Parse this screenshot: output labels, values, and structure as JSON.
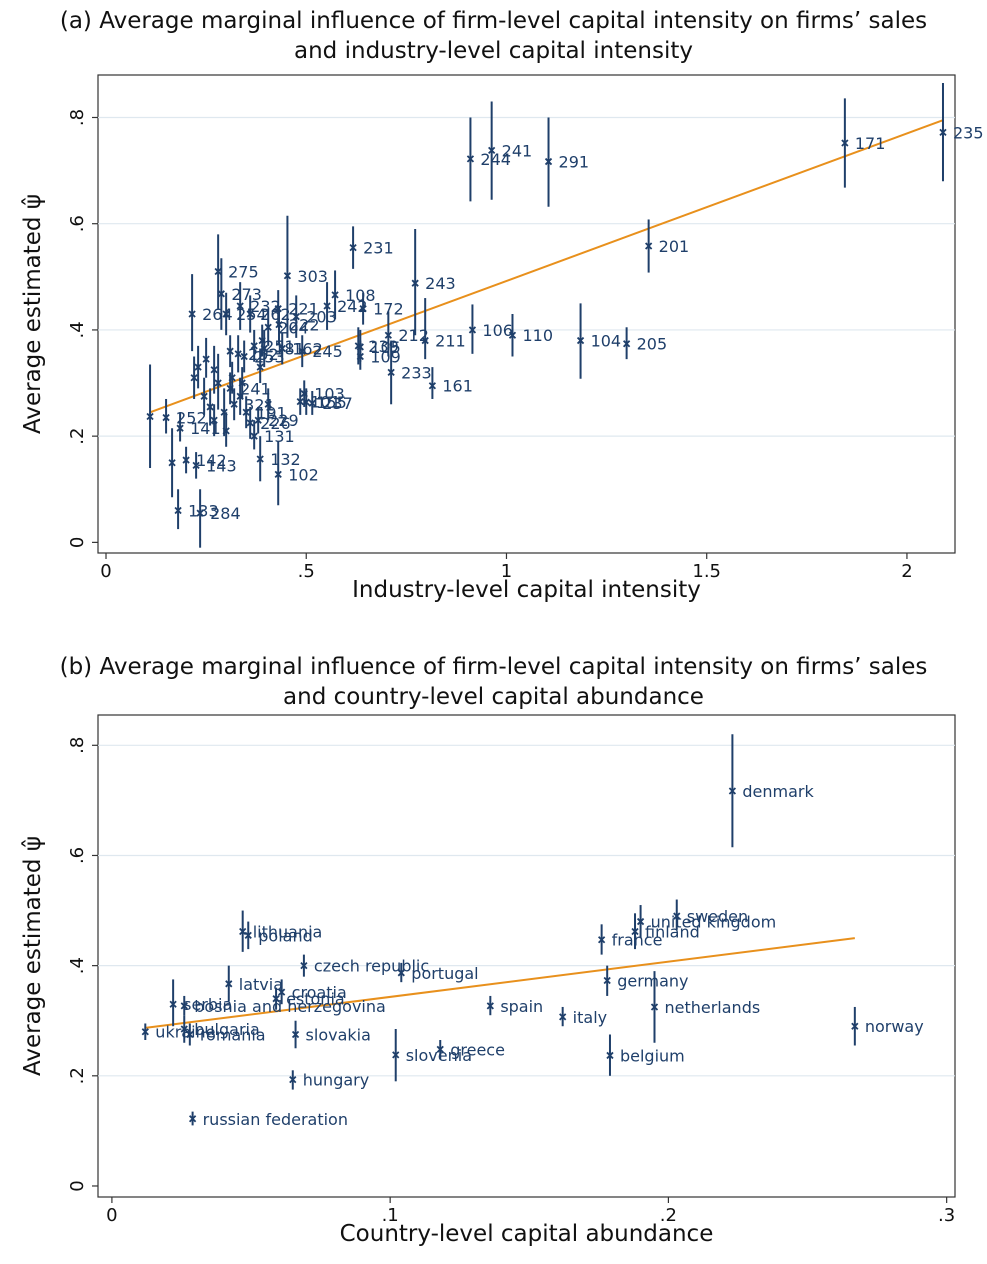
{
  "panels": [
    {
      "title_line1": "(a) Average marginal influence of firm-level capital intensity on firms’ sales",
      "title_line2": "and industry-level capital intensity",
      "xlabel": "Industry-level capital intensity",
      "ylabel": "Average estimated ψ̂"
    },
    {
      "title_line1": "(b) Average marginal influence of firm-level capital intensity on firms’ sales",
      "title_line2": "and country-level capital abundance",
      "xlabel": "Country-level capital abundance",
      "ylabel": "Average estimated ψ̂"
    }
  ],
  "chart_data": [
    {
      "type": "scatter",
      "title": "(a) Average marginal influence of firm-level capital intensity on firms’ sales and industry-level capital intensity",
      "xlabel": "Industry-level capital intensity",
      "ylabel": "Average estimated ψ̂",
      "xlim": [
        -0.02,
        2.12
      ],
      "ylim": [
        -0.02,
        0.88
      ],
      "xticks": [
        0,
        0.5,
        1,
        1.5,
        2
      ],
      "xtick_labels": [
        "0",
        ".5",
        "1",
        "1.5",
        "2"
      ],
      "yticks": [
        0,
        0.2,
        0.4,
        0.6,
        0.8
      ],
      "ytick_labels": [
        "0",
        ".2",
        ".4",
        ".6",
        ".8"
      ],
      "grid": "horizontal",
      "colors": {
        "points": "#1f3f6a",
        "fit": "#e8901c",
        "grid": "#dfe8ef"
      },
      "fit_line": {
        "x": [
          0.11,
          2.09
        ],
        "y": [
          0.245,
          0.795
        ]
      },
      "points": [
        {
          "label": "235",
          "x": 2.09,
          "y": 0.772,
          "lo": 0.68,
          "hi": 0.865
        },
        {
          "label": "171",
          "x": 1.845,
          "y": 0.752,
          "lo": 0.668,
          "hi": 0.836
        },
        {
          "label": "201",
          "x": 1.355,
          "y": 0.558,
          "lo": 0.508,
          "hi": 0.608
        },
        {
          "label": "205",
          "x": 1.3,
          "y": 0.374,
          "lo": 0.345,
          "hi": 0.405
        },
        {
          "label": "104",
          "x": 1.185,
          "y": 0.38,
          "lo": 0.308,
          "hi": 0.45
        },
        {
          "label": "110",
          "x": 1.015,
          "y": 0.39,
          "lo": 0.35,
          "hi": 0.43
        },
        {
          "label": "106",
          "x": 0.915,
          "y": 0.4,
          "lo": 0.355,
          "hi": 0.448
        },
        {
          "label": "291",
          "x": 1.105,
          "y": 0.717,
          "lo": 0.632,
          "hi": 0.8
        },
        {
          "label": "241",
          "x": 0.963,
          "y": 0.738,
          "lo": 0.645,
          "hi": 0.83
        },
        {
          "label": "244",
          "x": 0.91,
          "y": 0.722,
          "lo": 0.642,
          "hi": 0.8
        },
        {
          "label": "243",
          "x": 0.772,
          "y": 0.488,
          "lo": 0.39,
          "hi": 0.59
        },
        {
          "label": "211",
          "x": 0.797,
          "y": 0.38,
          "lo": 0.345,
          "hi": 0.46
        },
        {
          "label": "212",
          "x": 0.705,
          "y": 0.39,
          "lo": 0.35,
          "hi": 0.435
        },
        {
          "label": "161",
          "x": 0.815,
          "y": 0.295,
          "lo": 0.27,
          "hi": 0.33
        },
        {
          "label": "233",
          "x": 0.712,
          "y": 0.32,
          "lo": 0.26,
          "hi": 0.38
        },
        {
          "label": "231",
          "x": 0.617,
          "y": 0.555,
          "lo": 0.515,
          "hi": 0.595
        },
        {
          "label": "303",
          "x": 0.453,
          "y": 0.502,
          "lo": 0.385,
          "hi": 0.615
        },
        {
          "label": "275",
          "x": 0.28,
          "y": 0.51,
          "lo": 0.44,
          "hi": 0.58
        },
        {
          "label": "273",
          "x": 0.288,
          "y": 0.468,
          "lo": 0.4,
          "hi": 0.535
        },
        {
          "label": "108",
          "x": 0.572,
          "y": 0.466,
          "lo": 0.42,
          "hi": 0.512
        },
        {
          "label": "242",
          "x": 0.552,
          "y": 0.445,
          "lo": 0.4,
          "hi": 0.49
        },
        {
          "label": "172",
          "x": 0.642,
          "y": 0.44,
          "lo": 0.41,
          "hi": 0.47
        },
        {
          "label": "264",
          "x": 0.215,
          "y": 0.43,
          "lo": 0.36,
          "hi": 0.505
        },
        {
          "label": "232",
          "x": 0.335,
          "y": 0.445,
          "lo": 0.4,
          "hi": 0.49
        },
        {
          "label": "221",
          "x": 0.43,
          "y": 0.44,
          "lo": 0.405,
          "hi": 0.475
        },
        {
          "label": "203",
          "x": 0.475,
          "y": 0.425,
          "lo": 0.385,
          "hi": 0.465
        },
        {
          "label": "254",
          "x": 0.3,
          "y": 0.43,
          "lo": 0.39,
          "hi": 0.47
        },
        {
          "label": "262",
          "x": 0.36,
          "y": 0.43,
          "lo": 0.395,
          "hi": 0.465
        },
        {
          "label": "222",
          "x": 0.432,
          "y": 0.41,
          "lo": 0.375,
          "hi": 0.445
        },
        {
          "label": "204",
          "x": 0.405,
          "y": 0.405,
          "lo": 0.37,
          "hi": 0.44
        },
        {
          "label": "239",
          "x": 0.63,
          "y": 0.37,
          "lo": 0.335,
          "hi": 0.405
        },
        {
          "label": "105",
          "x": 0.635,
          "y": 0.368,
          "lo": 0.34,
          "hi": 0.4
        },
        {
          "label": "109",
          "x": 0.635,
          "y": 0.35,
          "lo": 0.325,
          "hi": 0.38
        },
        {
          "label": "162",
          "x": 0.44,
          "y": 0.365,
          "lo": 0.335,
          "hi": 0.395
        },
        {
          "label": "245",
          "x": 0.49,
          "y": 0.36,
          "lo": 0.33,
          "hi": 0.39
        },
        {
          "label": "251",
          "x": 0.37,
          "y": 0.37,
          "lo": 0.34,
          "hi": 0.4
        },
        {
          "label": "181",
          "x": 0.395,
          "y": 0.365,
          "lo": 0.33,
          "hi": 0.4
        },
        {
          "label": "252",
          "x": 0.33,
          "y": 0.355,
          "lo": 0.32,
          "hi": 0.39
        },
        {
          "label": "253",
          "x": 0.345,
          "y": 0.35,
          "lo": 0.32,
          "hi": 0.38
        },
        {
          "label": "103",
          "x": 0.495,
          "y": 0.28,
          "lo": 0.255,
          "hi": 0.305
        },
        {
          "label": "101",
          "x": 0.485,
          "y": 0.265,
          "lo": 0.24,
          "hi": 0.29
        },
        {
          "label": "155",
          "x": 0.5,
          "y": 0.264,
          "lo": 0.24,
          "hi": 0.29
        },
        {
          "label": "237",
          "x": 0.515,
          "y": 0.262,
          "lo": 0.24,
          "hi": 0.285
        },
        {
          "label": "241",
          "x": 0.31,
          "y": 0.29,
          "lo": 0.26,
          "hi": 0.32
        },
        {
          "label": "321",
          "x": 0.32,
          "y": 0.26,
          "lo": 0.23,
          "hi": 0.29
        },
        {
          "label": "191",
          "x": 0.35,
          "y": 0.245,
          "lo": 0.215,
          "hi": 0.275
        },
        {
          "label": "229",
          "x": 0.38,
          "y": 0.23,
          "lo": 0.205,
          "hi": 0.255
        },
        {
          "label": "226",
          "x": 0.36,
          "y": 0.225,
          "lo": 0.195,
          "hi": 0.255
        },
        {
          "label": "131",
          "x": 0.37,
          "y": 0.2,
          "lo": 0.175,
          "hi": 0.23
        },
        {
          "label": "252",
          "x": 0.15,
          "y": 0.235,
          "lo": 0.205,
          "hi": 0.27
        },
        {
          "label": "141",
          "x": 0.185,
          "y": 0.215,
          "lo": 0.19,
          "hi": 0.245
        },
        {
          "label": "102",
          "x": 0.43,
          "y": 0.128,
          "lo": 0.07,
          "hi": 0.19
        },
        {
          "label": "132",
          "x": 0.385,
          "y": 0.157,
          "lo": 0.115,
          "hi": 0.2
        },
        {
          "label": "142",
          "x": 0.2,
          "y": 0.155,
          "lo": 0.13,
          "hi": 0.18
        },
        {
          "label": "143",
          "x": 0.225,
          "y": 0.145,
          "lo": 0.12,
          "hi": 0.17
        },
        {
          "label": "133",
          "x": 0.18,
          "y": 0.06,
          "lo": 0.025,
          "hi": 0.1
        },
        {
          "label": "284",
          "x": 0.235,
          "y": 0.055,
          "lo": -0.01,
          "hi": 0.1
        },
        {
          "label": "",
          "x": 0.11,
          "y": 0.237,
          "lo": 0.14,
          "hi": 0.335
        },
        {
          "label": "",
          "x": 0.165,
          "y": 0.15,
          "lo": 0.085,
          "hi": 0.215
        },
        {
          "label": "",
          "x": 0.22,
          "y": 0.31,
          "lo": 0.27,
          "hi": 0.35
        },
        {
          "label": "",
          "x": 0.25,
          "y": 0.345,
          "lo": 0.31,
          "hi": 0.385
        },
        {
          "label": "",
          "x": 0.27,
          "y": 0.325,
          "lo": 0.28,
          "hi": 0.37
        },
        {
          "label": "",
          "x": 0.28,
          "y": 0.3,
          "lo": 0.25,
          "hi": 0.355
        },
        {
          "label": "",
          "x": 0.245,
          "y": 0.275,
          "lo": 0.24,
          "hi": 0.31
        },
        {
          "label": "",
          "x": 0.26,
          "y": 0.255,
          "lo": 0.22,
          "hi": 0.29
        },
        {
          "label": "",
          "x": 0.295,
          "y": 0.245,
          "lo": 0.2,
          "hi": 0.29
        },
        {
          "label": "",
          "x": 0.3,
          "y": 0.21,
          "lo": 0.18,
          "hi": 0.245
        },
        {
          "label": "",
          "x": 0.315,
          "y": 0.31,
          "lo": 0.28,
          "hi": 0.34
        },
        {
          "label": "",
          "x": 0.335,
          "y": 0.275,
          "lo": 0.24,
          "hi": 0.31
        },
        {
          "label": "",
          "x": 0.34,
          "y": 0.3,
          "lo": 0.27,
          "hi": 0.33
        },
        {
          "label": "",
          "x": 0.385,
          "y": 0.33,
          "lo": 0.3,
          "hi": 0.365
        },
        {
          "label": "",
          "x": 0.405,
          "y": 0.26,
          "lo": 0.23,
          "hi": 0.29
        },
        {
          "label": "",
          "x": 0.39,
          "y": 0.38,
          "lo": 0.35,
          "hi": 0.41
        },
        {
          "label": "",
          "x": 0.27,
          "y": 0.23,
          "lo": 0.2,
          "hi": 0.26
        },
        {
          "label": "",
          "x": 0.31,
          "y": 0.36,
          "lo": 0.33,
          "hi": 0.39
        },
        {
          "label": "",
          "x": 0.23,
          "y": 0.33,
          "lo": 0.29,
          "hi": 0.37
        }
      ]
    },
    {
      "type": "scatter",
      "title": "(b) Average marginal influence of firm-level capital intensity on firms’ sales and country-level capital abundance",
      "xlabel": "Country-level capital abundance",
      "ylabel": "Average estimated ψ̂",
      "xlim": [
        -0.005,
        0.303
      ],
      "ylim": [
        -0.02,
        0.855
      ],
      "xticks": [
        0,
        0.1,
        0.2,
        0.3
      ],
      "xtick_labels": [
        "0",
        ".1",
        ".2",
        ".3"
      ],
      "yticks": [
        0,
        0.2,
        0.4,
        0.6,
        0.8
      ],
      "ytick_labels": [
        "0",
        ".2",
        ".4",
        ".6",
        ".8"
      ],
      "grid": "horizontal",
      "colors": {
        "points": "#1f3f6a",
        "fit": "#e8901c",
        "grid": "#dfe8ef"
      },
      "fit_line": {
        "x": [
          0.012,
          0.267
        ],
        "y": [
          0.287,
          0.45
        ]
      },
      "points": [
        {
          "label": "denmark",
          "x": 0.223,
          "y": 0.717,
          "lo": 0.615,
          "hi": 0.82
        },
        {
          "label": "sweden",
          "x": 0.203,
          "y": 0.49,
          "lo": 0.465,
          "hi": 0.52
        },
        {
          "label": "united kingdom",
          "x": 0.19,
          "y": 0.48,
          "lo": 0.45,
          "hi": 0.51
        },
        {
          "label": "finland",
          "x": 0.188,
          "y": 0.462,
          "lo": 0.43,
          "hi": 0.495
        },
        {
          "label": "france",
          "x": 0.176,
          "y": 0.447,
          "lo": 0.42,
          "hi": 0.475
        },
        {
          "label": "germany",
          "x": 0.178,
          "y": 0.373,
          "lo": 0.345,
          "hi": 0.4
        },
        {
          "label": "netherlands",
          "x": 0.195,
          "y": 0.325,
          "lo": 0.26,
          "hi": 0.39
        },
        {
          "label": "norway",
          "x": 0.267,
          "y": 0.29,
          "lo": 0.255,
          "hi": 0.325
        },
        {
          "label": "belgium",
          "x": 0.179,
          "y": 0.237,
          "lo": 0.2,
          "hi": 0.275
        },
        {
          "label": "italy",
          "x": 0.162,
          "y": 0.307,
          "lo": 0.29,
          "hi": 0.325
        },
        {
          "label": "spain",
          "x": 0.136,
          "y": 0.327,
          "lo": 0.31,
          "hi": 0.345
        },
        {
          "label": "portugal",
          "x": 0.104,
          "y": 0.387,
          "lo": 0.37,
          "hi": 0.405
        },
        {
          "label": "greece",
          "x": 0.118,
          "y": 0.248,
          "lo": 0.23,
          "hi": 0.265
        },
        {
          "label": "slovenia",
          "x": 0.102,
          "y": 0.238,
          "lo": 0.19,
          "hi": 0.285
        },
        {
          "label": "czech republic",
          "x": 0.069,
          "y": 0.4,
          "lo": 0.38,
          "hi": 0.42
        },
        {
          "label": "lithuania",
          "x": 0.047,
          "y": 0.462,
          "lo": 0.425,
          "hi": 0.5
        },
        {
          "label": "poland",
          "x": 0.049,
          "y": 0.455,
          "lo": 0.43,
          "hi": 0.48
        },
        {
          "label": "latvia",
          "x": 0.042,
          "y": 0.367,
          "lo": 0.335,
          "hi": 0.4
        },
        {
          "label": "croatia",
          "x": 0.061,
          "y": 0.352,
          "lo": 0.33,
          "hi": 0.375
        },
        {
          "label": "estonia",
          "x": 0.059,
          "y": 0.34,
          "lo": 0.32,
          "hi": 0.36
        },
        {
          "label": "bosnia and herzegovina",
          "x": 0.026,
          "y": 0.327,
          "lo": 0.31,
          "hi": 0.345
        },
        {
          "label": "serbia",
          "x": 0.022,
          "y": 0.33,
          "lo": 0.29,
          "hi": 0.375
        },
        {
          "label": "slovakia",
          "x": 0.066,
          "y": 0.275,
          "lo": 0.25,
          "hi": 0.3
        },
        {
          "label": "bulgaria",
          "x": 0.026,
          "y": 0.285,
          "lo": 0.26,
          "hi": 0.31
        },
        {
          "label": "romania",
          "x": 0.028,
          "y": 0.275,
          "lo": 0.255,
          "hi": 0.295
        },
        {
          "label": "ukraine",
          "x": 0.012,
          "y": 0.28,
          "lo": 0.265,
          "hi": 0.295
        },
        {
          "label": "hungary",
          "x": 0.065,
          "y": 0.193,
          "lo": 0.175,
          "hi": 0.21
        },
        {
          "label": "russian federation",
          "x": 0.029,
          "y": 0.122,
          "lo": 0.11,
          "hi": 0.135
        }
      ]
    }
  ]
}
